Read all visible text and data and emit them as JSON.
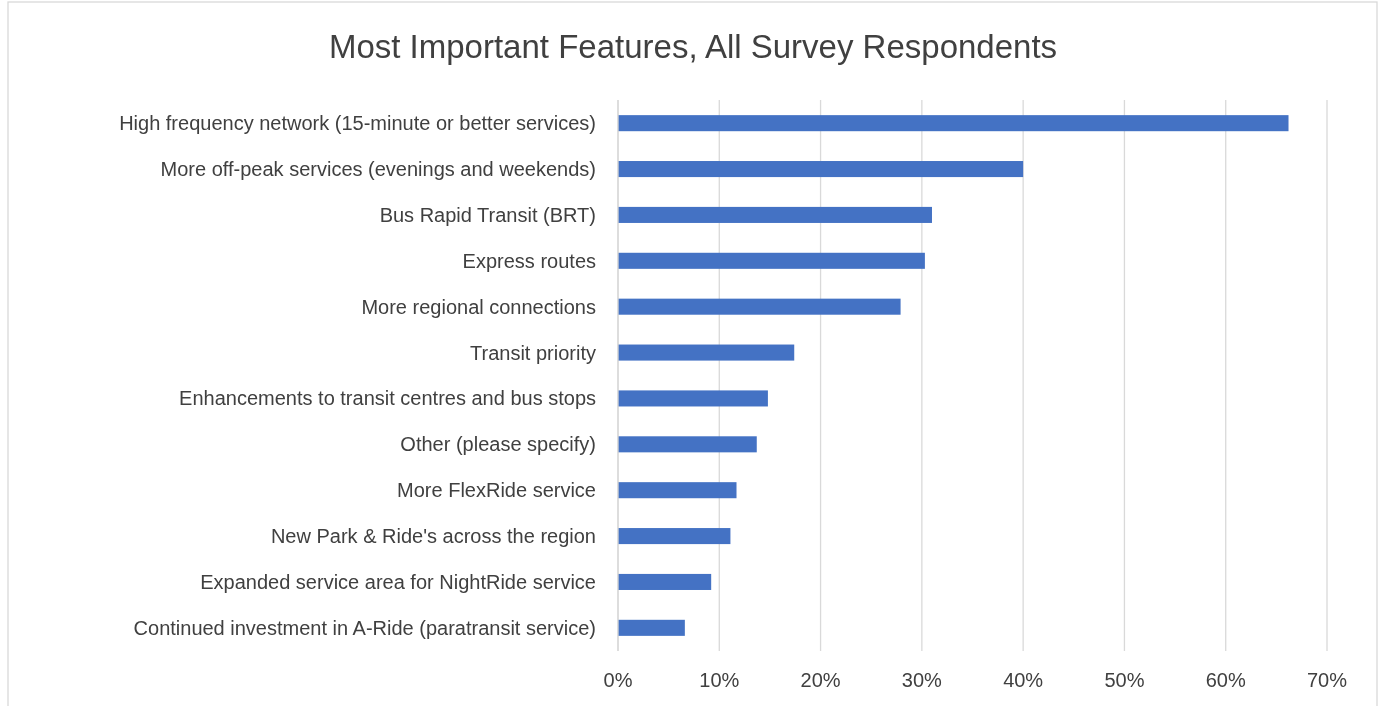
{
  "chart_data": {
    "type": "bar",
    "orientation": "horizontal",
    "title": "Most Important Features, All Survey Respondents",
    "categories": [
      "High frequency network (15-minute or better services)",
      "More off-peak services (evenings and weekends)",
      "Bus Rapid Transit (BRT)",
      "Express routes",
      "More regional connections",
      "Transit priority",
      "Enhancements to transit centres and bus stops",
      "Other (please specify)",
      "More FlexRide service",
      "New Park & Ride's across the region",
      "Expanded service area for NightRide service",
      "Continued investment in A-Ride (paratransit service)"
    ],
    "values": [
      66.2,
      40,
      31,
      30.3,
      27.9,
      17.4,
      14.8,
      13.7,
      11.7,
      11.1,
      9.2,
      6.6
    ],
    "color": "#4472c4",
    "xlim": [
      0,
      70
    ],
    "xticks": [
      {
        "value": 0,
        "label": "0%"
      },
      {
        "value": 10,
        "label": "10%"
      },
      {
        "value": 20,
        "label": "20%"
      },
      {
        "value": 30,
        "label": "30%"
      },
      {
        "value": 40,
        "label": "40%"
      },
      {
        "value": 50,
        "label": "50%"
      },
      {
        "value": 60,
        "label": "60%"
      },
      {
        "value": 70,
        "label": "70%"
      }
    ],
    "grid": "x"
  }
}
